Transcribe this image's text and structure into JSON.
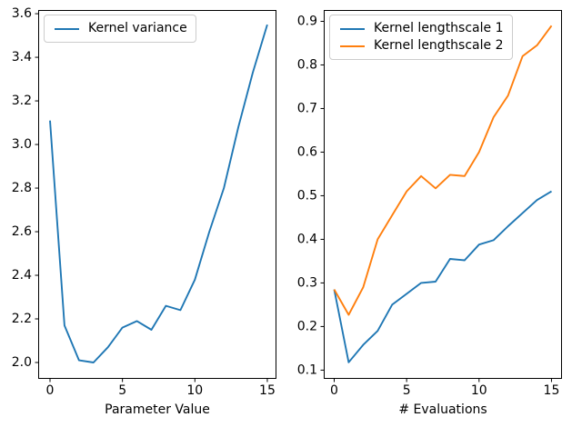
{
  "colors": {
    "background": "#ffffff",
    "spine": "#000000",
    "tick_text": "#000000",
    "legend_border": "#cccccc",
    "line_blue": "#1f77b4",
    "line_orange": "#ff7f0e"
  },
  "chart_data": [
    {
      "type": "line",
      "title": "",
      "xlabel": "Parameter Value",
      "ylabel": "",
      "grid": false,
      "legend_position": "upper-left",
      "x": [
        0,
        1,
        2,
        3,
        4,
        5,
        6,
        7,
        8,
        9,
        10,
        11,
        12,
        13,
        14,
        15
      ],
      "xlim": [
        -0.816,
        15.631
      ],
      "ylim": [
        1.925,
        3.617
      ],
      "xtick_values": [
        0,
        5,
        10,
        15
      ],
      "xtick_labels": [
        "0",
        "5",
        "10",
        "15"
      ],
      "ytick_values": [
        2.0,
        2.2,
        2.4,
        2.6,
        2.8,
        3.0,
        3.2,
        3.4,
        3.6
      ],
      "ytick_labels": [
        "2.0",
        "2.2",
        "2.4",
        "2.6",
        "2.8",
        "3.0",
        "3.2",
        "3.4",
        "3.6"
      ],
      "series": [
        {
          "name": "Kernel variance",
          "color": "#1f77b4",
          "values": [
            3.11,
            2.17,
            2.01,
            2.0,
            2.07,
            2.16,
            2.19,
            2.15,
            2.26,
            2.24,
            2.38,
            2.6,
            2.8,
            3.08,
            3.33,
            3.55
          ]
        }
      ]
    },
    {
      "type": "line",
      "title": "",
      "xlabel": "# Evaluations",
      "ylabel": "",
      "grid": false,
      "legend_position": "upper-left",
      "x": [
        0,
        1,
        2,
        3,
        4,
        5,
        6,
        7,
        8,
        9,
        10,
        11,
        12,
        13,
        14,
        15
      ],
      "xlim": [
        -0.722,
        15.725
      ],
      "ylim": [
        0.08,
        0.926
      ],
      "xtick_values": [
        0,
        5,
        10,
        15
      ],
      "xtick_labels": [
        "0",
        "5",
        "10",
        "15"
      ],
      "ytick_values": [
        0.1,
        0.2,
        0.3,
        0.4,
        0.5,
        0.6,
        0.7,
        0.8,
        0.9
      ],
      "ytick_labels": [
        "0.1",
        "0.2",
        "0.3",
        "0.4",
        "0.5",
        "0.6",
        "0.7",
        "0.8",
        "0.9"
      ],
      "series": [
        {
          "name": "Kernel lengthscale 1",
          "color": "#1f77b4",
          "values": [
            0.285,
            0.118,
            0.158,
            0.19,
            0.25,
            0.275,
            0.3,
            0.303,
            0.355,
            0.352,
            0.388,
            0.398,
            0.43,
            0.46,
            0.49,
            0.51
          ]
        },
        {
          "name": "Kernel lengthscale 2",
          "color": "#ff7f0e",
          "values": [
            0.285,
            0.227,
            0.29,
            0.4,
            0.455,
            0.51,
            0.545,
            0.517,
            0.548,
            0.545,
            0.6,
            0.68,
            0.73,
            0.82,
            0.845,
            0.89
          ]
        }
      ]
    }
  ]
}
